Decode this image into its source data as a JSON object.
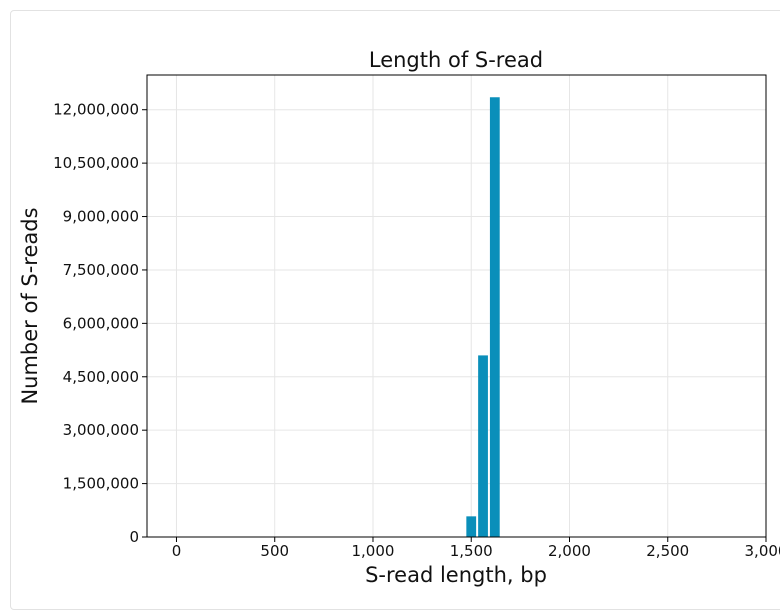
{
  "chart_data": {
    "type": "bar",
    "title": "Length of S-read",
    "xlabel": "S-read length, bp",
    "ylabel": "Number of S-reads",
    "xlim": [
      -150,
      3000
    ],
    "ylim": [
      0,
      12975000
    ],
    "x_ticks": [
      "0",
      "500",
      "1,000",
      "1,500",
      "2,000",
      "2,500",
      "3,000"
    ],
    "x_tick_values": [
      0,
      500,
      1000,
      1500,
      2000,
      2500,
      3000
    ],
    "y_ticks": [
      "0",
      "1,500,000",
      "3,000,000",
      "4,500,000",
      "6,000,000",
      "7,500,000",
      "9,000,000",
      "10,500,000",
      "12,000,000"
    ],
    "y_tick_values": [
      0,
      1500000,
      3000000,
      4500000,
      6000000,
      7500000,
      9000000,
      10500000,
      12000000
    ],
    "bin_width": 60,
    "bins": [
      {
        "x": 1500,
        "value": 580000
      },
      {
        "x": 1560,
        "value": 5100000
      },
      {
        "x": 1620,
        "value": 12350000
      }
    ],
    "bar_color": "#0a8fba",
    "grid": true
  }
}
